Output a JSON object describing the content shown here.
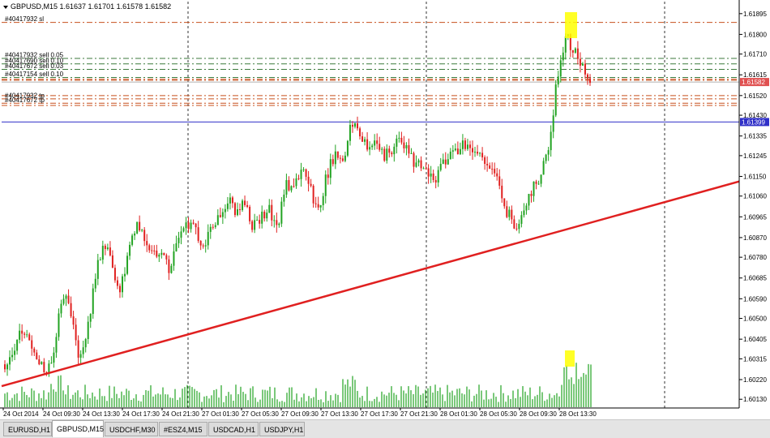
{
  "chart": {
    "title": "GBPUSD,M15  1.61637 1.61701 1.61578 1.61582",
    "symbol": "GBPUSD",
    "timeframe": "M15",
    "ohlc": {
      "open": 1.61637,
      "high": 1.61701,
      "low": 1.61578,
      "close": 1.61582
    }
  },
  "chart_data": {
    "type": "candlestick",
    "y_range": [
      1.6009,
      1.6195
    ],
    "price_ticks": [
      "1.61895",
      "1.61800",
      "1.61710",
      "1.61615",
      "1.61520",
      "1.61430",
      "1.61335",
      "1.61245",
      "1.61150",
      "1.61060",
      "1.60965",
      "1.60870",
      "1.60780",
      "1.60685",
      "1.60590",
      "1.60500",
      "1.60405",
      "1.60315",
      "1.60220",
      "1.60130"
    ],
    "price_tick_values": [
      1.61895,
      1.618,
      1.6171,
      1.61615,
      1.6152,
      1.6143,
      1.61335,
      1.61245,
      1.6115,
      1.6106,
      1.60965,
      1.6087,
      1.6078,
      1.60685,
      1.6059,
      1.605,
      1.60405,
      1.60315,
      1.6022,
      1.6013
    ],
    "time_labels": [
      "24 Oct 2014",
      "24 Oct 09:30",
      "24 Oct 13:30",
      "24 Oct 17:30",
      "24 Oct 21:30",
      "27 Oct 01:30",
      "27 Oct 05:30",
      "27 Oct 09:30",
      "27 Oct 13:30",
      "27 Oct 17:30",
      "27 Oct 21:30",
      "28 Oct 01:30",
      "28 Oct 05:30",
      "28 Oct 09:30",
      "28 Oct 13:30"
    ],
    "current_price_tag": "1.61582",
    "horizontal_line_tag": "1.61399",
    "horizontal_line_value": 1.61399,
    "current_price_value": 1.61582,
    "order_lines": [
      {
        "label": "#40417932 sl",
        "value": 1.61855,
        "color": "#c8501e",
        "style": "dashdot"
      },
      {
        "label": "#40417932 sell 0.05",
        "value": 1.6169,
        "color": "#3c7a3c",
        "style": "dashdot"
      },
      {
        "label": "#40417690 sell 0.10",
        "value": 1.61665,
        "color": "#3c7a3c",
        "style": "dashdot"
      },
      {
        "label": "#40417672 sell 0.03",
        "value": 1.6164,
        "color": "#3c7a3c",
        "style": "dashdot"
      },
      {
        "label": "#40417154 sell 0.10",
        "value": 1.61603,
        "color": "#3c7a3c",
        "style": "dashdot"
      },
      {
        "label": "#40417932 tp",
        "value": 1.61505,
        "color": "#c8501e",
        "style": "dashdot"
      },
      {
        "label": "#40417672 tp",
        "value": 1.61485,
        "color": "#c8501e",
        "style": "dashdot"
      }
    ],
    "extra_order_lines": [
      1.61595,
      1.6159,
      1.6152,
      1.61475
    ],
    "trendline": {
      "start_value": 1.6019,
      "end_value": 1.61127
    },
    "price_path": [
      1.6029,
      1.6035,
      1.6045,
      1.604,
      1.6032,
      1.6022,
      1.6038,
      1.6062,
      1.6053,
      1.603,
      1.6045,
      1.607,
      1.6085,
      1.6075,
      1.6062,
      1.608,
      1.6092,
      1.6085,
      1.6078,
      1.6083,
      1.6072,
      1.6088,
      1.6095,
      1.609,
      1.6083,
      1.6092,
      1.6097,
      1.6105,
      1.6098,
      1.6102,
      1.6093,
      1.6095,
      1.61,
      1.609,
      1.6112,
      1.6108,
      1.612,
      1.611,
      1.6098,
      1.6115,
      1.6125,
      1.612,
      1.6142,
      1.6135,
      1.6128,
      1.6133,
      1.6125,
      1.6128,
      1.6133,
      1.6125,
      1.612,
      1.6117,
      1.6112,
      1.612,
      1.6125,
      1.6128,
      1.613,
      1.6127,
      1.6125,
      1.6118,
      1.611,
      1.6098,
      1.6092,
      1.6102,
      1.611,
      1.6115,
      1.6128,
      1.616,
      1.618,
      1.6172,
      1.6166,
      1.6158
    ],
    "volume_highlight": "spike at 28 Oct 13:30",
    "grid": "dashed vertical lines",
    "colors": {
      "bull": "#22a322",
      "bear": "#e0201f",
      "trendline": "#e02020",
      "hline": "#3030c8",
      "price_tag": "#e05050",
      "hline_tag": "#3030c8",
      "highlight": "#ffff00"
    }
  },
  "tabs": [
    {
      "label": "EURUSD,H1",
      "active": false
    },
    {
      "label": "GBPUSD,M15",
      "active": true
    },
    {
      "label": "USDCHF,M30",
      "active": false
    },
    {
      "label": "#ESZ4,M15",
      "active": false
    },
    {
      "label": "USDCAD,H1",
      "active": false
    },
    {
      "label": "USDJPY,H1",
      "active": false
    }
  ]
}
